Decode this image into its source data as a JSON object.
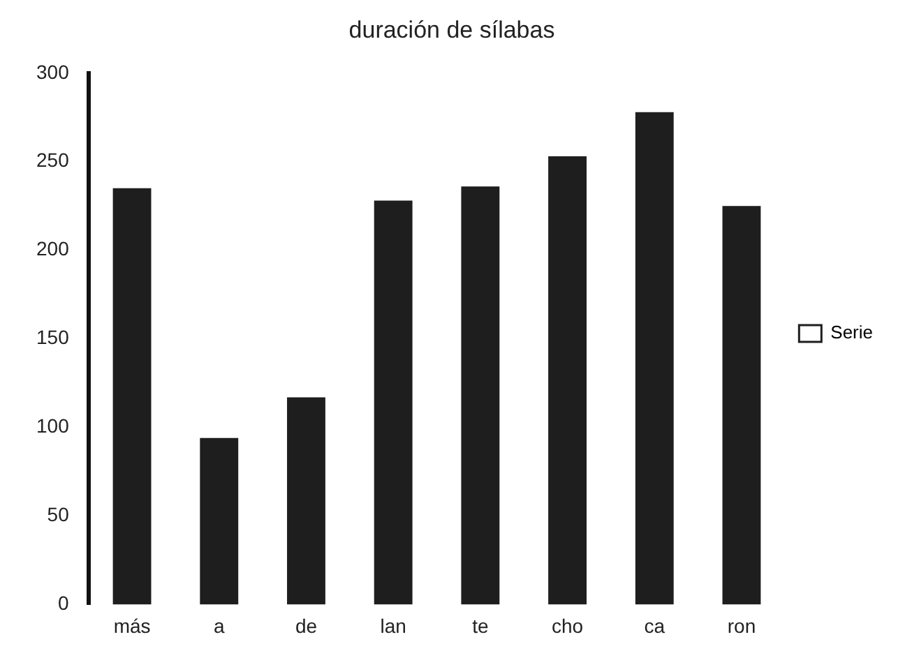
{
  "chart_data": {
    "type": "bar",
    "title": "duración de sílabas",
    "categories": [
      "más",
      "a",
      "de",
      "lan",
      "te",
      "cho",
      "ca",
      "ron"
    ],
    "series": [
      {
        "name": "Serie",
        "color": "#1e1e1e",
        "values": [
          235,
          94,
          117,
          228,
          236,
          253,
          278,
          225
        ]
      }
    ],
    "ylim": [
      0,
      300
    ],
    "yticks": [
      0,
      50,
      100,
      150,
      200,
      250,
      300
    ],
    "grid": false,
    "legend": "right"
  }
}
